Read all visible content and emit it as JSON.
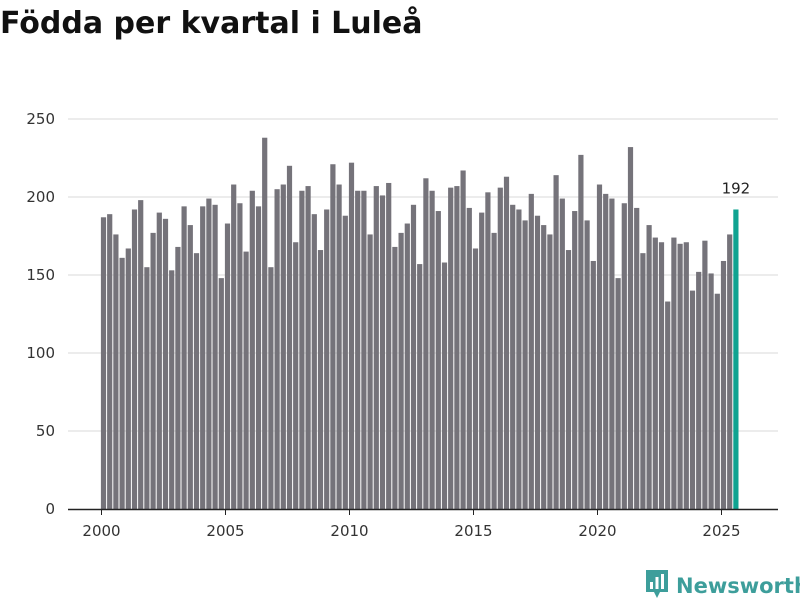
{
  "chart_data": {
    "type": "bar",
    "title": "Födda per kvartal i Luleå",
    "xlabel": "",
    "ylabel": "",
    "ylim": [
      0,
      250
    ],
    "y_ticks": [
      0,
      50,
      100,
      150,
      200,
      250
    ],
    "x_ticks": [
      2000,
      2005,
      2010,
      2015,
      2020,
      2025
    ],
    "grid": true,
    "start_year": 2000,
    "series": [
      {
        "name": "Födda",
        "values": [
          187,
          189,
          176,
          161,
          167,
          192,
          198,
          155,
          177,
          190,
          186,
          153,
          168,
          194,
          182,
          164,
          194,
          199,
          195,
          148,
          183,
          208,
          196,
          165,
          204,
          194,
          238,
          155,
          205,
          208,
          220,
          171,
          204,
          207,
          189,
          166,
          192,
          221,
          208,
          188,
          222,
          204,
          204,
          176,
          207,
          201,
          209,
          168,
          177,
          183,
          195,
          157,
          212,
          204,
          191,
          158,
          206,
          207,
          217,
          193,
          167,
          190,
          203,
          177,
          206,
          213,
          195,
          192,
          185,
          202,
          188,
          182,
          176,
          214,
          199,
          166,
          191,
          227,
          185,
          159,
          208,
          202,
          199,
          148,
          196,
          232,
          193,
          164,
          182,
          174,
          171,
          133,
          174,
          170,
          171,
          140,
          152,
          172,
          151,
          138,
          159,
          176,
          192
        ]
      }
    ],
    "colors": {
      "bar": "#75737a",
      "highlight": "#10a391",
      "axis": "#222222",
      "grid": "#d9d9d9"
    },
    "last_label": "192"
  },
  "brand": {
    "name": "Newsworthy",
    "icon": "chart-logo-icon",
    "color": "#3d9e9b"
  }
}
